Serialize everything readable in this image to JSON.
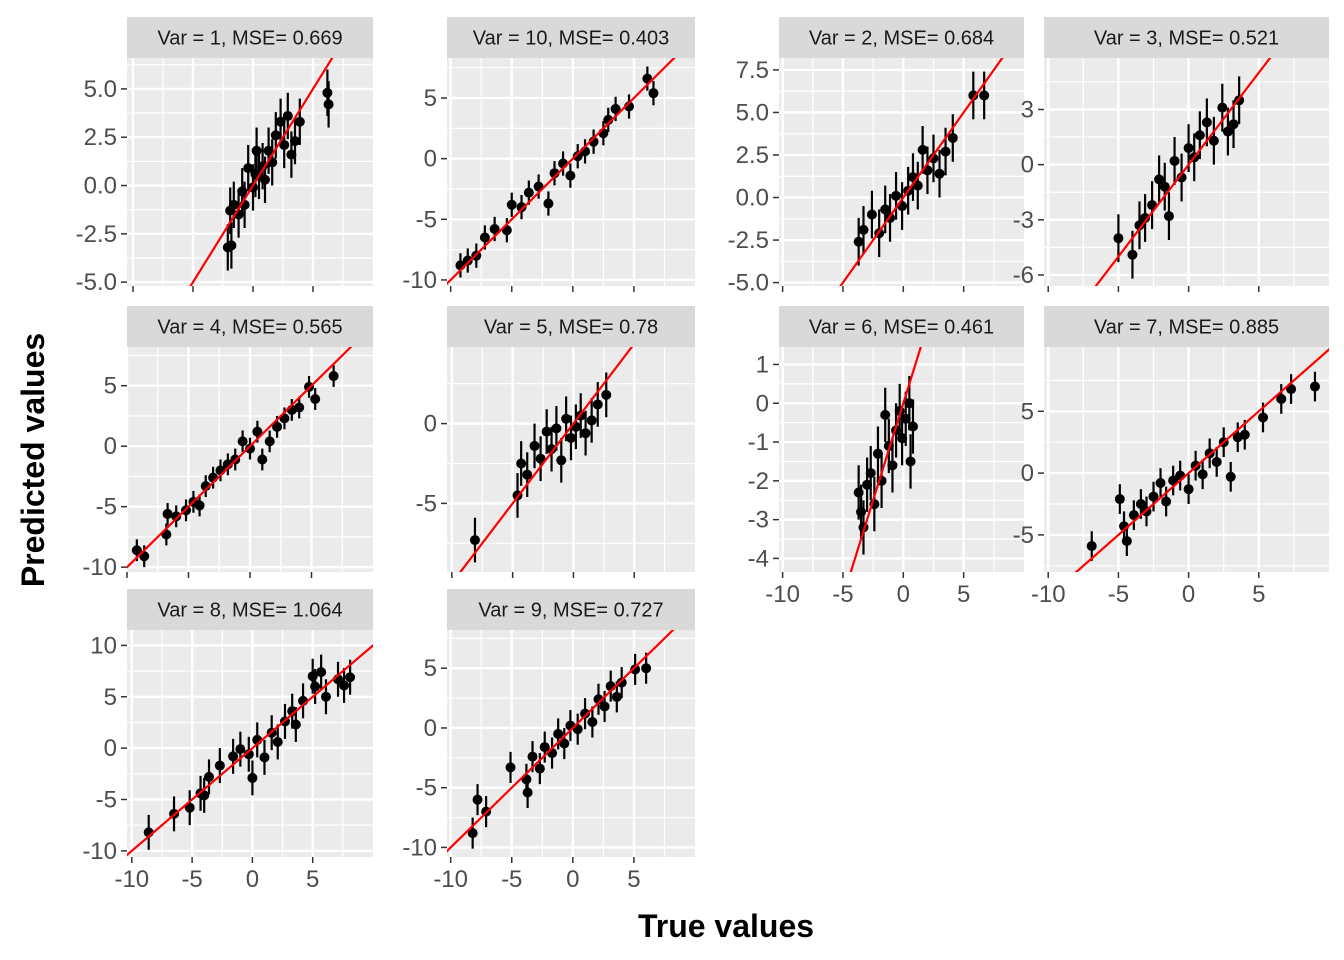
{
  "colors": {
    "panel_bg": "#ebebeb",
    "grid_major": "#ffffff",
    "strip_bg": "#d9d9d9",
    "points": "#000000",
    "fit_line": "#ff0000",
    "tick_text": "#4d4d4d"
  },
  "chart_data": {
    "type": "scatter",
    "layout": "facet_wrap 3 rows x 4 columns",
    "xlabel": "True values",
    "ylabel": "Predicted values",
    "grid": true,
    "fit_line": "identity (y = x)",
    "error_bars": "vertical",
    "panels": [
      {
        "strip": "Var = 1, MSE= 0.669",
        "xlim": [
          -10.5,
          10
        ],
        "ylim": [
          -5.2,
          6.6
        ],
        "x_ticks": [],
        "x_tick_labels": [],
        "y_ticks": [
          -5,
          -2.5,
          0,
          2.5,
          5
        ],
        "y_tick_labels": [
          "-5.0",
          "-2.5",
          "0.0",
          "2.5",
          "5.0"
        ],
        "points": [
          [
            -2.1,
            -3.2
          ],
          [
            -1.8,
            -3.1
          ],
          [
            -1.9,
            -1.3
          ],
          [
            -1.6,
            -1.0
          ],
          [
            -1.2,
            -1.5
          ],
          [
            -0.9,
            -0.3
          ],
          [
            -0.7,
            -1.0
          ],
          [
            -0.4,
            0.9
          ],
          [
            0,
            -0.1
          ],
          [
            0.2,
            0.6
          ],
          [
            0.3,
            1.8
          ],
          [
            0.5,
            0.5
          ],
          [
            0.8,
            1.0
          ],
          [
            1.0,
            0.3
          ],
          [
            1.3,
            1.8
          ],
          [
            1.6,
            1.2
          ],
          [
            1.9,
            2.6
          ],
          [
            2.3,
            3.3
          ],
          [
            2.6,
            2.1
          ],
          [
            2.9,
            3.6
          ],
          [
            3.2,
            1.6
          ],
          [
            3.5,
            2.3
          ],
          [
            3.9,
            3.3
          ],
          [
            6.2,
            4.8
          ],
          [
            6.3,
            4.2
          ]
        ],
        "error_half_width": 1.2
      },
      {
        "strip": "Var = 10, MSE= 0.403",
        "xlim": [
          -10.3,
          10
        ],
        "ylim": [
          -10.5,
          8.3
        ],
        "x_ticks": [],
        "x_tick_labels": [],
        "y_ticks": [
          -10,
          -5,
          0,
          5
        ],
        "y_tick_labels": [
          "-10",
          "-5",
          "0",
          "5"
        ],
        "points": [
          [
            -9.2,
            -8.8
          ],
          [
            -8.6,
            -8.4
          ],
          [
            -7.9,
            -8.0
          ],
          [
            -7.2,
            -6.5
          ],
          [
            -6.4,
            -5.8
          ],
          [
            -5.4,
            -5.9
          ],
          [
            -5.0,
            -3.8
          ],
          [
            -4.2,
            -4.0
          ],
          [
            -3.6,
            -2.8
          ],
          [
            -2.8,
            -2.3
          ],
          [
            -2.0,
            -3.7
          ],
          [
            -1.5,
            -1.2
          ],
          [
            -0.8,
            -0.4
          ],
          [
            -0.2,
            -1.4
          ],
          [
            0.4,
            0.2
          ],
          [
            1.0,
            0.6
          ],
          [
            1.7,
            1.4
          ],
          [
            2.5,
            2.1
          ],
          [
            2.9,
            3.2
          ],
          [
            3.5,
            4.1
          ],
          [
            4.6,
            4.3
          ],
          [
            6.1,
            6.6
          ],
          [
            6.6,
            5.4
          ]
        ],
        "error_half_width": 1.0
      },
      {
        "strip": "Var = 2, MSE= 0.684",
        "xlim": [
          -10.3,
          10
        ],
        "ylim": [
          -5.2,
          8.2
        ],
        "x_ticks": [],
        "x_tick_labels": [],
        "y_ticks": [
          -5,
          -2.5,
          0,
          2.5,
          5,
          7.5
        ],
        "y_tick_labels": [
          "-5.0",
          "-2.5",
          "0.0",
          "2.5",
          "5.0",
          "7.5"
        ],
        "points": [
          [
            -3.7,
            -2.6
          ],
          [
            -3.3,
            -1.9
          ],
          [
            -2.6,
            -1.0
          ],
          [
            -2.0,
            -2.1
          ],
          [
            -1.5,
            -0.7
          ],
          [
            -1.1,
            -1.2
          ],
          [
            -0.6,
            0.1
          ],
          [
            -0.1,
            -0.5
          ],
          [
            0.4,
            0.4
          ],
          [
            0.8,
            1.2
          ],
          [
            1.2,
            0.7
          ],
          [
            1.6,
            2.8
          ],
          [
            2.0,
            1.6
          ],
          [
            2.5,
            2.3
          ],
          [
            3.0,
            1.4
          ],
          [
            3.5,
            2.7
          ],
          [
            4.1,
            3.5
          ],
          [
            5.8,
            6.0
          ],
          [
            6.7,
            6.0
          ]
        ],
        "error_half_width": 1.4
      },
      {
        "strip": "Var = 3, MSE= 0.521",
        "xlim": [
          -10.3,
          10
        ],
        "ylim": [
          -6.6,
          5.8
        ],
        "x_ticks": [],
        "x_tick_labels": [],
        "y_ticks": [
          -6,
          -3,
          0,
          3
        ],
        "y_tick_labels": [
          "-6",
          "-3",
          "0",
          "3"
        ],
        "points": [
          [
            -5.0,
            -4.0
          ],
          [
            -4.0,
            -4.9
          ],
          [
            -3.5,
            -3.3
          ],
          [
            -3.1,
            -2.9
          ],
          [
            -2.6,
            -2.2
          ],
          [
            -2.1,
            -0.8
          ],
          [
            -1.7,
            -1.2
          ],
          [
            -1.4,
            -2.8
          ],
          [
            -1.0,
            0.2
          ],
          [
            -0.5,
            -0.7
          ],
          [
            0,
            0.9
          ],
          [
            0.4,
            0.4
          ],
          [
            0.8,
            1.6
          ],
          [
            1.3,
            2.3
          ],
          [
            1.8,
            1.3
          ],
          [
            2.4,
            3.1
          ],
          [
            2.8,
            1.8
          ],
          [
            3.2,
            2.2
          ],
          [
            3.6,
            3.5
          ]
        ],
        "error_half_width": 1.3
      },
      {
        "strip": "Var = 4, MSE= 0.565",
        "xlim": [
          -10,
          10
        ],
        "ylim": [
          -10.4,
          8.2
        ],
        "x_ticks": [],
        "x_tick_labels": [],
        "y_ticks": [
          -10,
          -5,
          0,
          5
        ],
        "y_tick_labels": [
          "-10",
          "-5",
          "0",
          "5"
        ],
        "points": [
          [
            -9.2,
            -8.6
          ],
          [
            -8.6,
            -9.1
          ],
          [
            -6.8,
            -7.3
          ],
          [
            -6.7,
            -5.6
          ],
          [
            -6.0,
            -5.8
          ],
          [
            -5.2,
            -5.3
          ],
          [
            -4.6,
            -4.6
          ],
          [
            -4.1,
            -4.9
          ],
          [
            -3.6,
            -3.3
          ],
          [
            -3.0,
            -2.6
          ],
          [
            -2.4,
            -2.0
          ],
          [
            -1.8,
            -1.5
          ],
          [
            -1.2,
            -1.1
          ],
          [
            -0.6,
            0.4
          ],
          [
            0,
            -0.2
          ],
          [
            0.6,
            1.2
          ],
          [
            1.0,
            -1.1
          ],
          [
            1.6,
            0.4
          ],
          [
            2.2,
            1.6
          ],
          [
            2.8,
            2.3
          ],
          [
            3.4,
            3.0
          ],
          [
            4.0,
            3.2
          ],
          [
            4.8,
            4.9
          ],
          [
            5.3,
            3.9
          ],
          [
            6.8,
            5.8
          ]
        ],
        "error_half_width": 0.9
      },
      {
        "strip": "Var = 5, MSE= 0.78",
        "xlim": [
          -10.4,
          10
        ],
        "ylim": [
          -9.3,
          4.8
        ],
        "x_ticks": [],
        "x_tick_labels": [],
        "y_ticks": [
          -5,
          0
        ],
        "y_tick_labels": [
          "-5",
          "0"
        ],
        "points": [
          [
            -8.1,
            -7.3
          ],
          [
            -4.6,
            -4.5
          ],
          [
            -4.3,
            -2.5
          ],
          [
            -3.8,
            -3.2
          ],
          [
            -3.2,
            -1.4
          ],
          [
            -2.7,
            -2.2
          ],
          [
            -2.2,
            -0.5
          ],
          [
            -1.8,
            -1.6
          ],
          [
            -1.4,
            -0.3
          ],
          [
            -1.0,
            -2.3
          ],
          [
            -0.6,
            0.3
          ],
          [
            -0.2,
            -0.9
          ],
          [
            0.2,
            -0.2
          ],
          [
            0.6,
            0.5
          ],
          [
            1.0,
            -0.6
          ],
          [
            1.5,
            0.2
          ],
          [
            2.0,
            1.2
          ],
          [
            2.7,
            1.8
          ]
        ],
        "error_half_width": 1.4
      },
      {
        "strip": "Var = 6, MSE= 0.461",
        "xlim": [
          -10.3,
          10
        ],
        "ylim": [
          -4.35,
          1.45
        ],
        "x_ticks": [
          -10,
          -5,
          0,
          5
        ],
        "x_tick_labels": [
          "-10",
          "-5",
          "0",
          "5"
        ],
        "y_ticks": [
          -4,
          -3,
          -2,
          -1,
          0,
          1
        ],
        "y_tick_labels": [
          "-4",
          "-3",
          "-2",
          "-1",
          "0",
          "1"
        ],
        "points": [
          [
            -3.7,
            -2.3
          ],
          [
            -3.5,
            -2.8
          ],
          [
            -3.3,
            -3.2
          ],
          [
            -3.0,
            -2.1
          ],
          [
            -2.7,
            -1.8
          ],
          [
            -2.4,
            -2.6
          ],
          [
            -2.1,
            -1.3
          ],
          [
            -1.8,
            -2.0
          ],
          [
            -1.5,
            -0.3
          ],
          [
            -1.2,
            -1.1
          ],
          [
            -0.9,
            -1.6
          ],
          [
            -0.6,
            -0.7
          ],
          [
            -0.3,
            -0.2
          ],
          [
            -0.1,
            -0.9
          ],
          [
            0.2,
            -0.4
          ],
          [
            0.5,
            0.0
          ],
          [
            0.6,
            -1.5
          ],
          [
            0.8,
            -0.6
          ]
        ],
        "error_half_width": 0.7
      },
      {
        "strip": "Var = 7, MSE= 0.885",
        "xlim": [
          -10.3,
          10
        ],
        "ylim": [
          -8,
          10.2
        ],
        "x_ticks": [
          -10,
          -5,
          0,
          5
        ],
        "x_tick_labels": [
          "-10",
          "-5",
          "0",
          "5"
        ],
        "y_ticks": [
          -5,
          0,
          5
        ],
        "y_tick_labels": [
          "-5",
          "0",
          "5"
        ],
        "points": [
          [
            -6.9,
            -5.9
          ],
          [
            -4.9,
            -2.1
          ],
          [
            -4.6,
            -4.3
          ],
          [
            -4.4,
            -5.5
          ],
          [
            -3.9,
            -3.4
          ],
          [
            -3.4,
            -2.5
          ],
          [
            -3.0,
            -3.1
          ],
          [
            -2.5,
            -1.9
          ],
          [
            -2.0,
            -0.8
          ],
          [
            -1.6,
            -2.3
          ],
          [
            -1.1,
            -0.6
          ],
          [
            -0.6,
            -0.2
          ],
          [
            0,
            -1.3
          ],
          [
            0.5,
            0.6
          ],
          [
            1.0,
            -0.1
          ],
          [
            1.5,
            1.6
          ],
          [
            2.0,
            0.9
          ],
          [
            2.5,
            2.5
          ],
          [
            3.0,
            -0.3
          ],
          [
            3.5,
            2.9
          ],
          [
            4.0,
            3.1
          ],
          [
            5.3,
            4.5
          ],
          [
            6.6,
            6.0
          ],
          [
            7.3,
            6.8
          ],
          [
            9.0,
            7.0
          ]
        ],
        "error_half_width": 1.2
      },
      {
        "strip": "Var = 8, MSE= 1.064",
        "xlim": [
          -10.4,
          10
        ],
        "ylim": [
          -10.6,
          11.5
        ],
        "x_ticks": [
          -10,
          -5,
          0,
          5
        ],
        "x_tick_labels": [
          "-10",
          "-5",
          "0",
          "5"
        ],
        "y_ticks": [
          -10,
          -5,
          0,
          5,
          10
        ],
        "y_tick_labels": [
          "-10",
          "-5",
          "0",
          "5",
          "10"
        ],
        "points": [
          [
            -8.6,
            -8.2
          ],
          [
            -6.5,
            -6.4
          ],
          [
            -5.2,
            -5.8
          ],
          [
            -4.3,
            -4.4
          ],
          [
            -4.0,
            -4.6
          ],
          [
            -3.6,
            -2.8
          ],
          [
            -2.7,
            -1.7
          ],
          [
            -1.6,
            -0.8
          ],
          [
            -1.0,
            -0.1
          ],
          [
            -0.3,
            -0.6
          ],
          [
            0,
            -2.9
          ],
          [
            0.4,
            0.8
          ],
          [
            1.0,
            -0.9
          ],
          [
            1.6,
            1.5
          ],
          [
            2.1,
            0.6
          ],
          [
            2.7,
            2.6
          ],
          [
            3.3,
            3.6
          ],
          [
            3.6,
            2.3
          ],
          [
            4.2,
            4.6
          ],
          [
            5.0,
            7.0
          ],
          [
            5.2,
            6.0
          ],
          [
            5.7,
            7.4
          ],
          [
            6.1,
            5.0
          ],
          [
            7.1,
            6.7
          ],
          [
            7.6,
            6.1
          ],
          [
            8.1,
            6.9
          ]
        ],
        "error_half_width": 1.7
      },
      {
        "strip": "Var = 9, MSE= 0.727",
        "xlim": [
          -10.3,
          10
        ],
        "ylim": [
          -10.8,
          8.2
        ],
        "x_ticks": [
          -10,
          -5,
          0,
          5
        ],
        "x_tick_labels": [
          "-10",
          "-5",
          "0",
          "5"
        ],
        "y_ticks": [
          -10,
          -5,
          0,
          5
        ],
        "y_tick_labels": [
          "-10",
          "-5",
          "0",
          "5"
        ],
        "points": [
          [
            -8.2,
            -8.8
          ],
          [
            -7.8,
            -6.0
          ],
          [
            -7.1,
            -7.0
          ],
          [
            -5.1,
            -3.3
          ],
          [
            -3.8,
            -4.3
          ],
          [
            -3.7,
            -5.4
          ],
          [
            -3.3,
            -2.4
          ],
          [
            -2.7,
            -3.4
          ],
          [
            -2.3,
            -1.6
          ],
          [
            -1.7,
            -2.1
          ],
          [
            -1.2,
            -0.5
          ],
          [
            -0.7,
            -1.3
          ],
          [
            -0.2,
            0.2
          ],
          [
            0.4,
            -0.1
          ],
          [
            1.0,
            1.2
          ],
          [
            1.6,
            0.5
          ],
          [
            2.1,
            2.4
          ],
          [
            2.6,
            1.8
          ],
          [
            3.1,
            3.5
          ],
          [
            3.6,
            2.6
          ],
          [
            4.0,
            3.8
          ],
          [
            5.1,
            4.9
          ],
          [
            6.0,
            5.0
          ]
        ],
        "error_half_width": 1.3
      }
    ]
  }
}
